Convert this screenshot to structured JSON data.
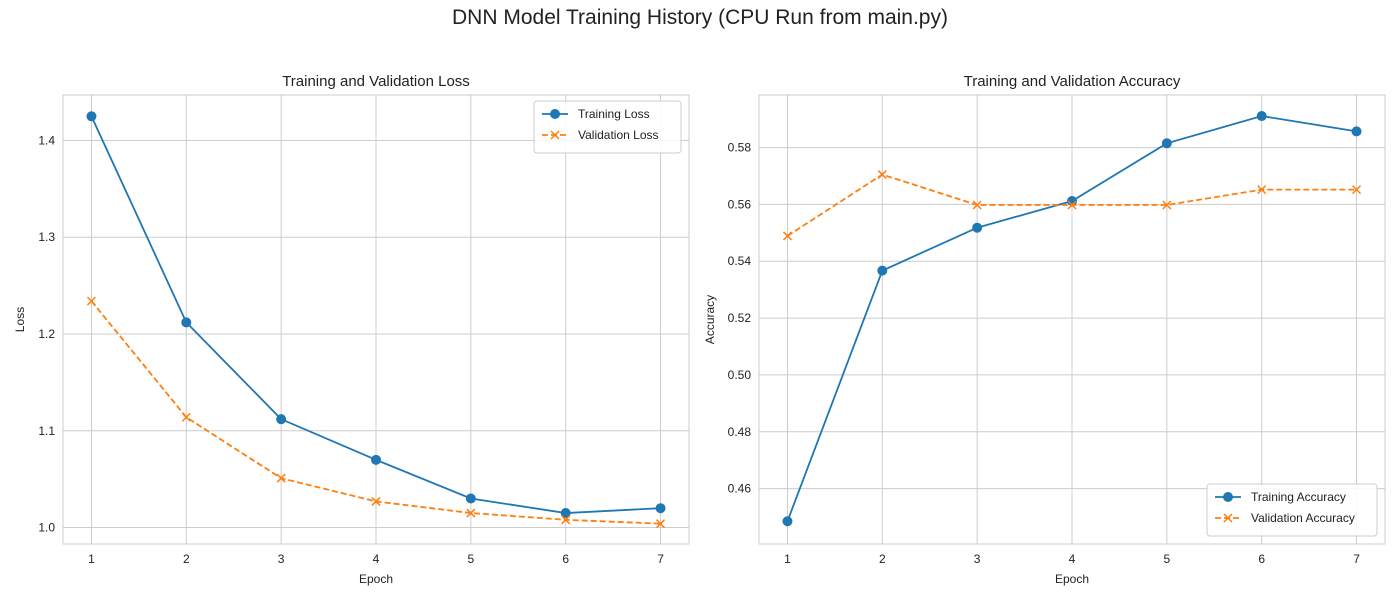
{
  "figure": {
    "title": "DNN Model Training History (CPU Run from main.py)"
  },
  "chart_data": [
    {
      "type": "line",
      "title": "Training and Validation Loss",
      "xlabel": "Epoch",
      "ylabel": "Loss",
      "x": [
        1,
        2,
        3,
        4,
        5,
        6,
        7
      ],
      "xlim": [
        0.7,
        7.3
      ],
      "ylim": [
        0.983,
        1.447
      ],
      "xticks": [
        1,
        2,
        3,
        4,
        5,
        6,
        7
      ],
      "yticks": [
        1.0,
        1.1,
        1.2,
        1.3,
        1.4
      ],
      "ytick_labels": [
        "1.0",
        "1.1",
        "1.2",
        "1.3",
        "1.4"
      ],
      "grid": true,
      "legend_position": "top-right",
      "series": [
        {
          "name": "Training Loss",
          "values": [
            1.425,
            1.212,
            1.112,
            1.07,
            1.03,
            1.015,
            1.02
          ],
          "color": "#1f77b4",
          "marker": "circle",
          "line_style": "solid"
        },
        {
          "name": "Validation Loss",
          "values": [
            1.234,
            1.114,
            1.051,
            1.027,
            1.015,
            1.008,
            1.004
          ],
          "color": "#ff7f0e",
          "marker": "x",
          "line_style": "dashed"
        }
      ]
    },
    {
      "type": "line",
      "title": "Training and Validation Accuracy",
      "xlabel": "Epoch",
      "ylabel": "Accuracy",
      "x": [
        1,
        2,
        3,
        4,
        5,
        6,
        7
      ],
      "xlim": [
        0.7,
        7.3
      ],
      "ylim": [
        0.4405,
        0.5985
      ],
      "xticks": [
        1,
        2,
        3,
        4,
        5,
        6,
        7
      ],
      "yticks": [
        0.46,
        0.48,
        0.5,
        0.52,
        0.54,
        0.56,
        0.58
      ],
      "ytick_labels": [
        "0.46",
        "0.48",
        "0.50",
        "0.52",
        "0.54",
        "0.56",
        "0.58"
      ],
      "grid": true,
      "legend_position": "bottom-right",
      "series": [
        {
          "name": "Training Accuracy",
          "values": [
            0.4485,
            0.5367,
            0.5518,
            0.5612,
            0.5815,
            0.5911,
            0.5857
          ],
          "color": "#1f77b4",
          "marker": "circle",
          "line_style": "solid"
        },
        {
          "name": "Validation Accuracy",
          "values": [
            0.5489,
            0.5705,
            0.5598,
            0.5598,
            0.5598,
            0.5652,
            0.5652
          ],
          "color": "#ff7f0e",
          "marker": "x",
          "line_style": "dashed"
        }
      ]
    }
  ]
}
